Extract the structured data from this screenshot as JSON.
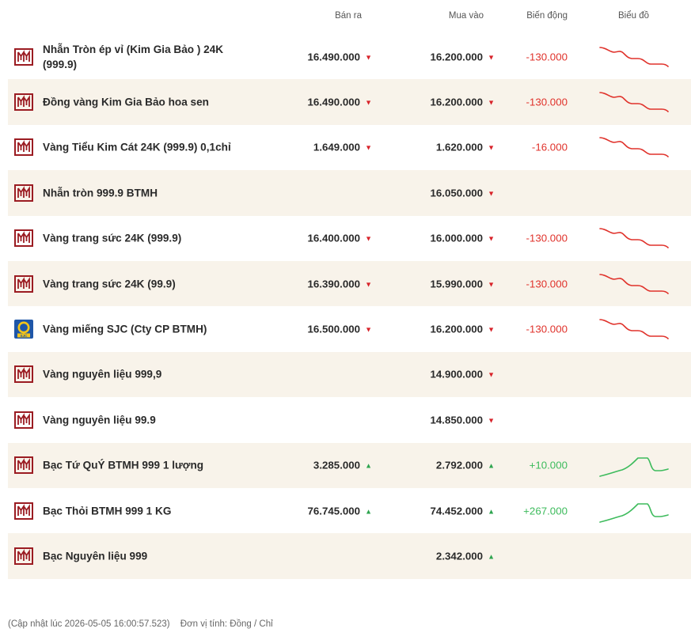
{
  "header": {
    "sell": "Bán ra",
    "buy": "Mua vào",
    "change": "Biến động",
    "chart": "Biểu đồ"
  },
  "colors": {
    "down": "#d8232a",
    "up": "#2ea44f",
    "row_alt": "#f8f3ea",
    "logo": "#9b1c22",
    "sjc": "#1e56a8"
  },
  "rows": [
    {
      "name": "Nhẫn Tròn ép vỉ (Kim Gia Bảo ) 24K (999.9)",
      "logo": "btmh-logo",
      "sell": "16.490.000",
      "sell_dir": "down",
      "buy": "16.200.000",
      "buy_dir": "down",
      "change": "-130.000",
      "chart": "down"
    },
    {
      "name": "Đồng vàng Kim Gia Bảo hoa sen",
      "logo": "btmh-logo",
      "sell": "16.490.000",
      "sell_dir": "down",
      "buy": "16.200.000",
      "buy_dir": "down",
      "change": "-130.000",
      "chart": "down"
    },
    {
      "name": "Vàng Tiểu Kim Cát 24K (999.9) 0,1chỉ",
      "logo": "btmh-logo",
      "sell": "1.649.000",
      "sell_dir": "down",
      "buy": "1.620.000",
      "buy_dir": "down",
      "change": "-16.000",
      "chart": "down"
    },
    {
      "name": "Nhẫn tròn 999.9 BTMH",
      "logo": "btmh-logo",
      "sell": "",
      "sell_dir": "",
      "buy": "16.050.000",
      "buy_dir": "down",
      "change": "",
      "chart": ""
    },
    {
      "name": "Vàng trang sức 24K (999.9)",
      "logo": "btmh-logo",
      "sell": "16.400.000",
      "sell_dir": "down",
      "buy": "16.000.000",
      "buy_dir": "down",
      "change": "-130.000",
      "chart": "down"
    },
    {
      "name": "Vàng trang sức 24K (99.9)",
      "logo": "btmh-logo",
      "sell": "16.390.000",
      "sell_dir": "down",
      "buy": "15.990.000",
      "buy_dir": "down",
      "change": "-130.000",
      "chart": "down"
    },
    {
      "name": "Vàng miếng SJC (Cty CP BTMH)",
      "logo": "sjc-logo",
      "sell": "16.500.000",
      "sell_dir": "down",
      "buy": "16.200.000",
      "buy_dir": "down",
      "change": "-130.000",
      "chart": "down"
    },
    {
      "name": "Vàng nguyên liệu 999,9",
      "logo": "btmh-logo",
      "sell": "",
      "sell_dir": "",
      "buy": "14.900.000",
      "buy_dir": "down",
      "change": "",
      "chart": ""
    },
    {
      "name": "Vàng nguyên liệu 99.9",
      "logo": "btmh-logo",
      "sell": "",
      "sell_dir": "",
      "buy": "14.850.000",
      "buy_dir": "down",
      "change": "",
      "chart": ""
    },
    {
      "name": "Bạc Tứ QuÝ BTMH 999 1 lượng",
      "logo": "btmh-logo",
      "sell": "3.285.000",
      "sell_dir": "up",
      "buy": "2.792.000",
      "buy_dir": "up",
      "change": "+10.000",
      "chart": "up"
    },
    {
      "name": "Bạc Thỏi BTMH 999 1 KG",
      "logo": "btmh-logo",
      "sell": "76.745.000",
      "sell_dir": "up",
      "buy": "74.452.000",
      "buy_dir": "up",
      "change": "+267.000",
      "chart": "up"
    },
    {
      "name": "Bạc Nguyên liệu 999",
      "logo": "btmh-logo",
      "sell": "",
      "sell_dir": "",
      "buy": "2.342.000",
      "buy_dir": "up",
      "change": "",
      "chart": ""
    }
  ],
  "footer": {
    "updated": "(Cập nhật lúc 2026-05-05 16:00:57.523)",
    "unit": "Đơn vị tính: Đồng / Chỉ"
  }
}
